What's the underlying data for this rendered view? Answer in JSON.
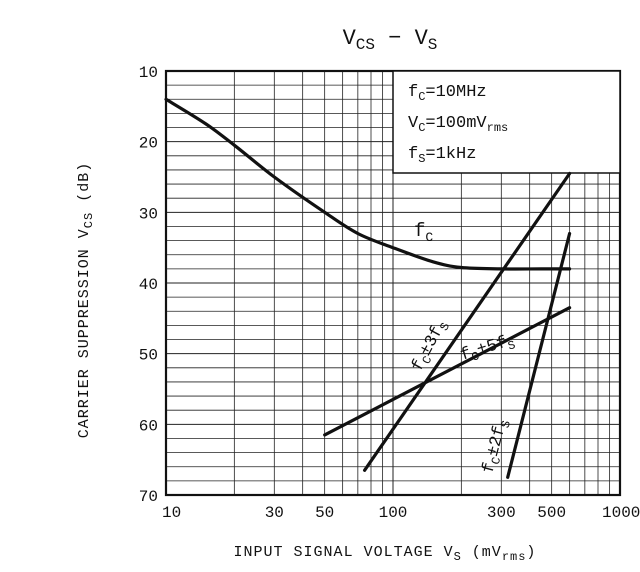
{
  "chart_data": {
    "type": "line",
    "title_main": "V",
    "title_sub1": "CS",
    "title_mid": " − V",
    "title_sub2": "S",
    "ylabel_main": "CARRIER SUPPRESSION V",
    "ylabel_sub": "CS",
    "ylabel_unit": " (dB)",
    "xlabel_main": "INPUT SIGNAL VOLTAGE V",
    "xlabel_sub": "S",
    "xlabel_unit_open": " (mV",
    "xlabel_unit_sub": "rms",
    "xlabel_unit_close": ")",
    "x_scale": "log",
    "xlim": [
      10,
      1000
    ],
    "ylim": [
      10,
      70
    ],
    "y_inverted": true,
    "x_ticks": [
      "10",
      "30",
      "50",
      "100",
      "300",
      "500",
      "1000"
    ],
    "x_tick_values": [
      10,
      30,
      50,
      100,
      300,
      500,
      1000
    ],
    "y_ticks": [
      "10",
      "20",
      "30",
      "40",
      "50",
      "60",
      "70"
    ],
    "y_tick_values": [
      10,
      20,
      30,
      40,
      50,
      60,
      70
    ],
    "grid": true,
    "conditions": [
      {
        "a": "f",
        "s": "C",
        "b": "=10MHz",
        "s2": ""
      },
      {
        "a": "V",
        "s": "C",
        "b": "=100mV",
        "s2": "rms"
      },
      {
        "a": "f",
        "s": "S",
        "b": "=1kHz",
        "s2": ""
      }
    ],
    "legend_placement": "top-right",
    "series": [
      {
        "label_main": "f",
        "label_sub": "C",
        "label_rest": "",
        "x": [
          10,
          15,
          20,
          30,
          50,
          70,
          100,
          150,
          200,
          300,
          450,
          600
        ],
        "y": [
          14,
          17.5,
          20.5,
          25,
          30,
          33,
          35,
          37,
          37.8,
          38,
          38,
          38
        ]
      },
      {
        "label_main": "f",
        "label_sub": "C",
        "label_rest": "±3f",
        "label_sub2": "S",
        "x": [
          75,
          600
        ],
        "y": [
          66.5,
          24.5
        ]
      },
      {
        "label_main": "f",
        "label_sub": "C",
        "label_rest": "±5f",
        "label_sub2": "S",
        "x": [
          50,
          600
        ],
        "y": [
          61.5,
          43.5
        ]
      },
      {
        "label_main": "f",
        "label_sub": "C",
        "label_rest": "±2f",
        "label_sub2": "S",
        "x": [
          320,
          600
        ],
        "y": [
          67.5,
          33
        ]
      }
    ]
  }
}
